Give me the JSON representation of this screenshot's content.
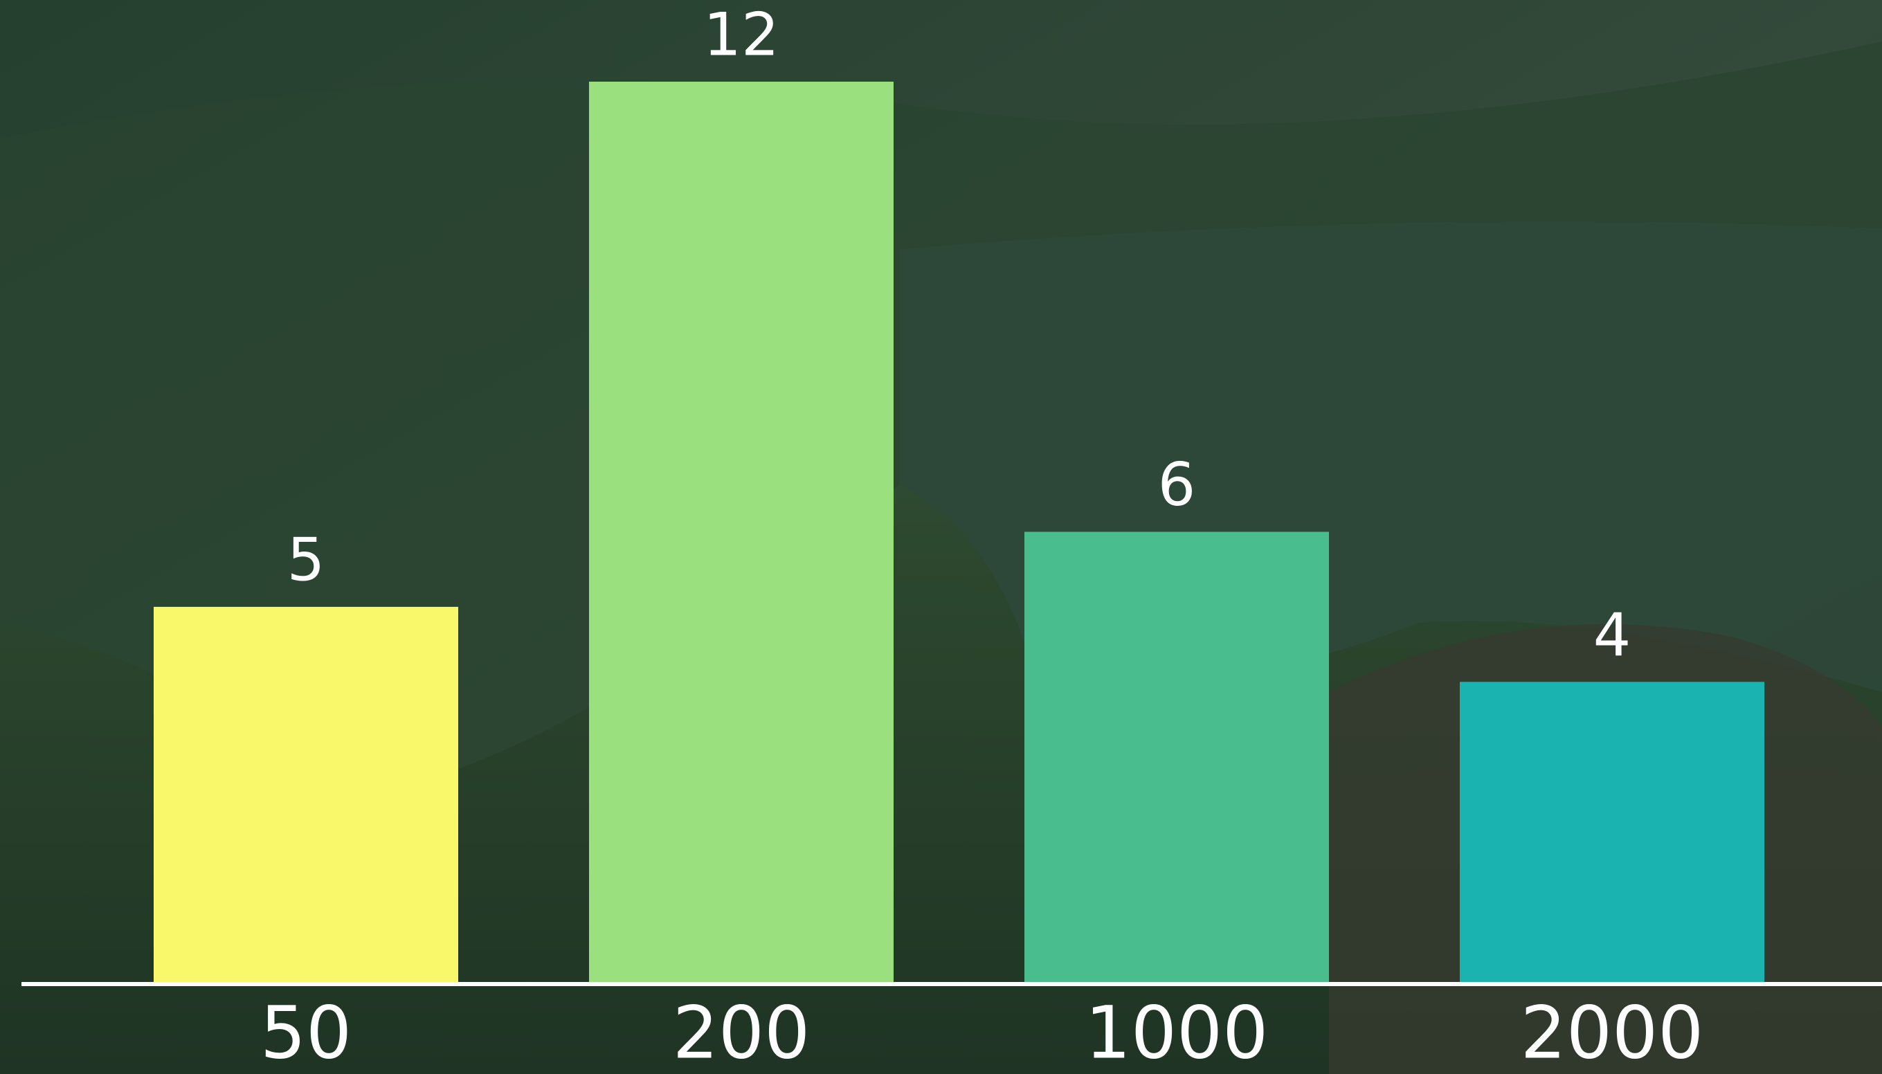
{
  "chart_data": {
    "type": "bar",
    "categories": [
      "50",
      "200",
      "1000",
      "2000"
    ],
    "values": [
      5,
      12,
      6,
      4
    ],
    "colors": [
      "#f8f86a",
      "#9ae07e",
      "#4abd8e",
      "#1ab3b0"
    ]
  }
}
